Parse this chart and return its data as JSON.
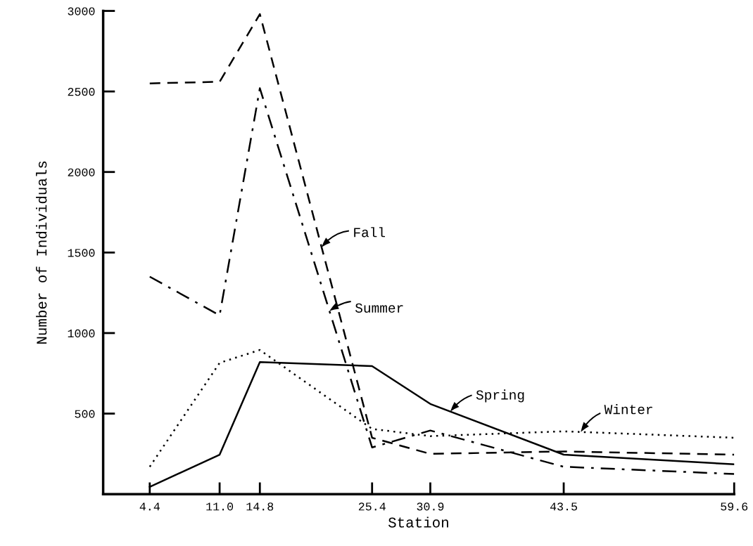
{
  "chart_data": {
    "type": "line",
    "xlabel": "Station",
    "ylabel": "Number of Individuals",
    "x": [
      4.4,
      11.0,
      14.8,
      25.4,
      30.9,
      43.5,
      59.6
    ],
    "series": [
      {
        "name": "Fall",
        "color": "#000000",
        "line_style": "dashed",
        "values": [
          2550,
          2560,
          2980,
          350,
          250,
          265,
          245
        ]
      },
      {
        "name": "Summer",
        "color": "#000000",
        "line_style": "dashdot",
        "values": [
          1350,
          1110,
          2520,
          290,
          395,
          170,
          125
        ]
      },
      {
        "name": "Spring",
        "color": "#000000",
        "line_style": "solid",
        "values": [
          45,
          245,
          820,
          795,
          560,
          245,
          185
        ]
      },
      {
        "name": "Winter",
        "color": "#000000",
        "line_style": "dotted",
        "values": [
          170,
          815,
          895,
          405,
          360,
          390,
          350
        ]
      }
    ],
    "xlim": [
      0,
      59.6
    ],
    "ylim": [
      0,
      3000
    ],
    "xticks": [
      {
        "value": 4.4,
        "label": "4.4"
      },
      {
        "value": 11.0,
        "label": "11.0"
      },
      {
        "value": 14.8,
        "label": "14.8"
      },
      {
        "value": 25.4,
        "label": "25.4"
      },
      {
        "value": 30.9,
        "label": "30.9"
      },
      {
        "value": 43.5,
        "label": "43.5"
      },
      {
        "value": 59.6,
        "label": "59.6"
      }
    ],
    "yticks": [
      500,
      1000,
      1500,
      2000,
      2500,
      3000
    ],
    "grid": false,
    "legend": "center",
    "marker": "none"
  }
}
